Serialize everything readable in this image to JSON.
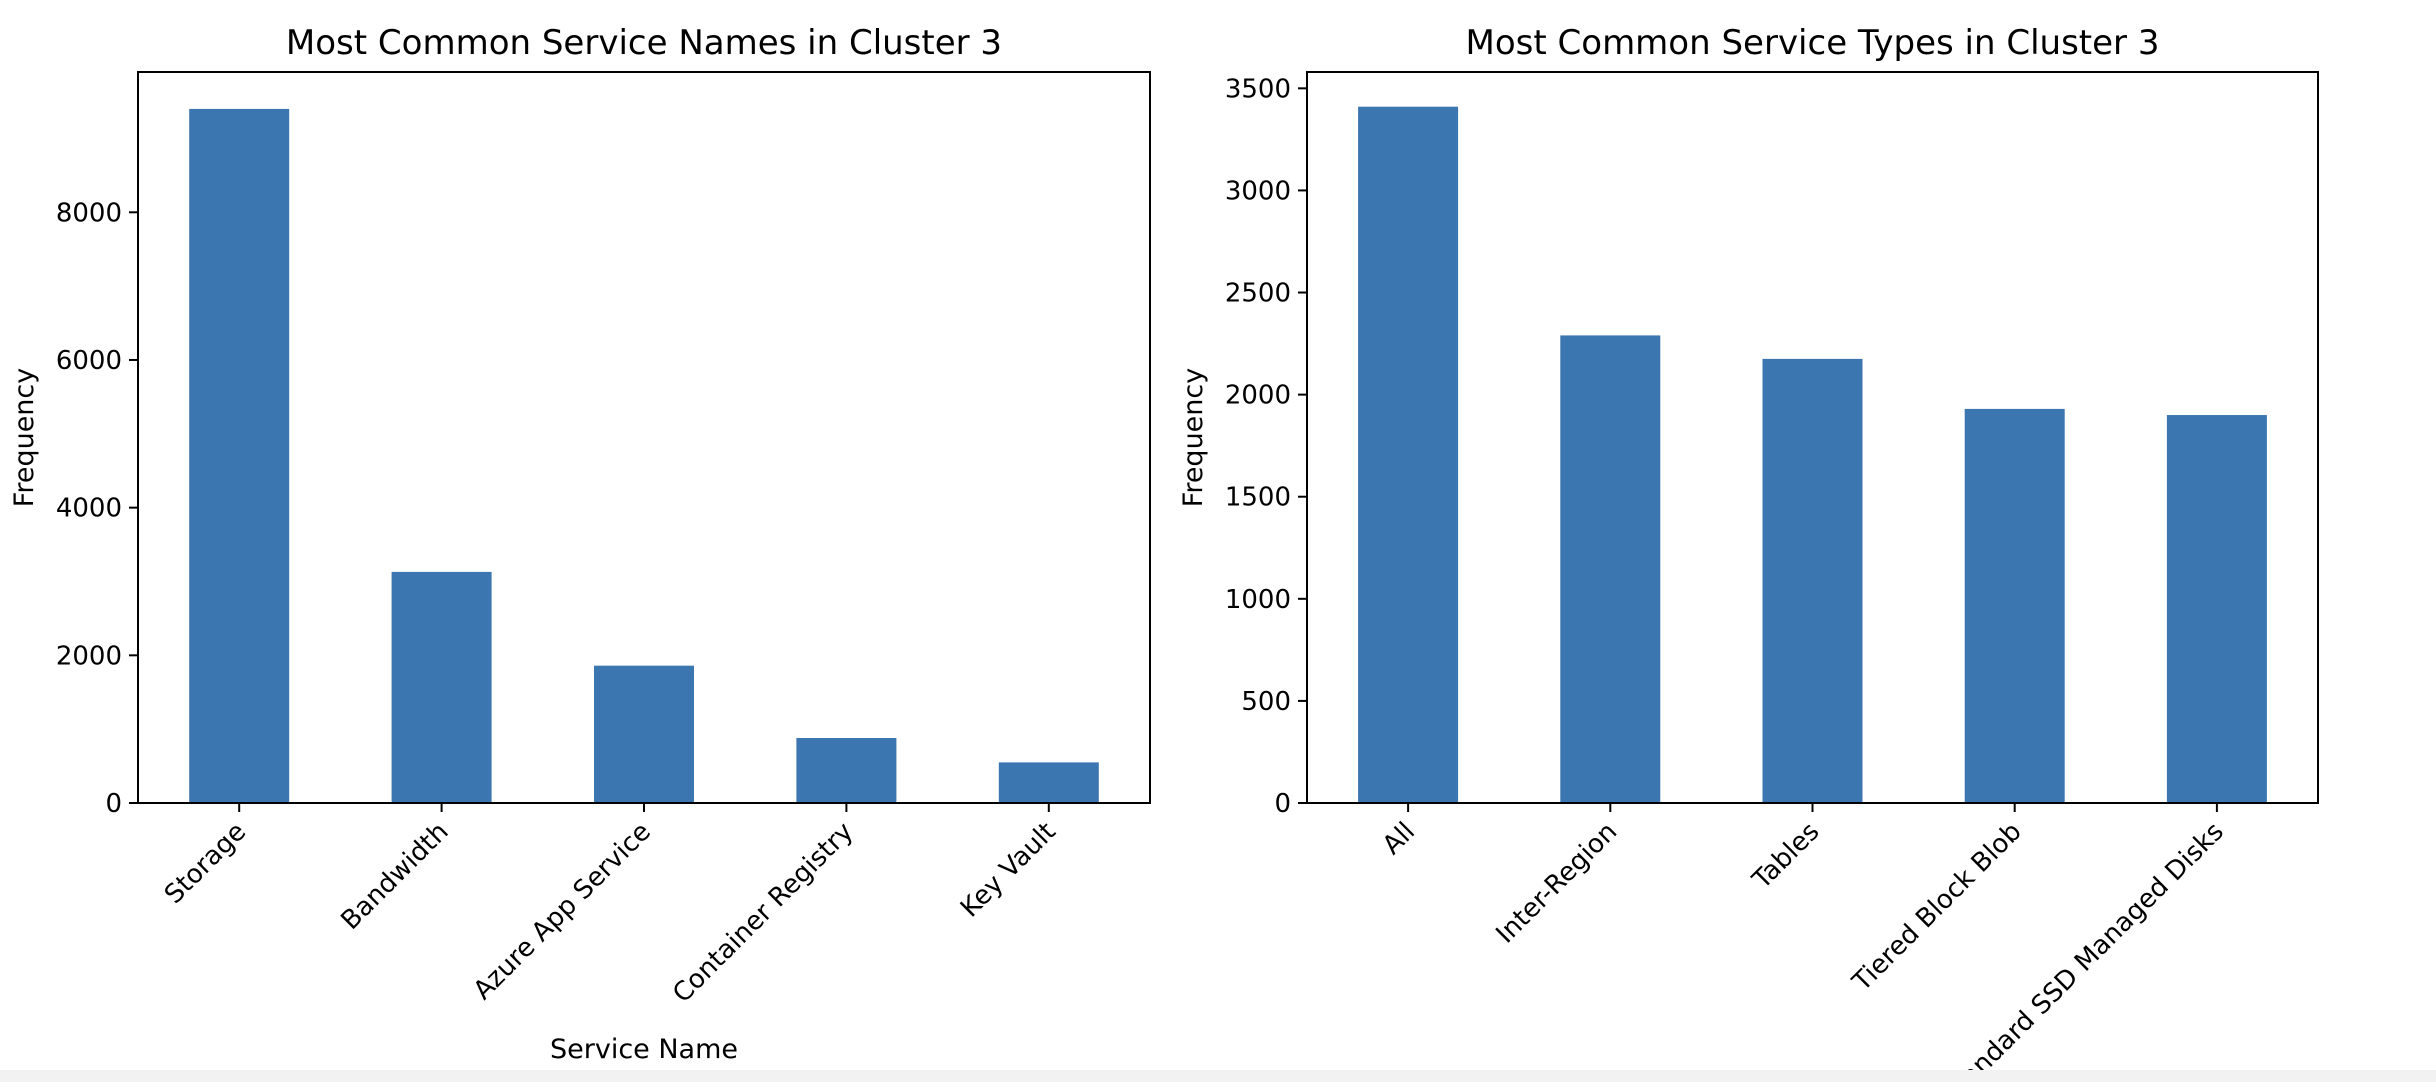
{
  "bar_color": "#3b76b0",
  "chart_data": [
    {
      "type": "bar",
      "title": "Most Common Service Names in Cluster 3",
      "xlabel": "Service Name",
      "ylabel": "Frequency",
      "categories": [
        "Storage",
        "Bandwidth",
        "Azure App Service",
        "Container Registry",
        "Key Vault"
      ],
      "values": [
        9400,
        3130,
        1860,
        880,
        550
      ],
      "ylim": [
        0,
        9900
      ],
      "yticks": [
        0,
        2000,
        4000,
        6000,
        8000
      ],
      "grid": false,
      "legend": "none"
    },
    {
      "type": "bar",
      "title": "Most Common Service Types in Cluster 3",
      "xlabel": "",
      "ylabel": "Frequency",
      "categories": [
        "All",
        "Inter-Region",
        "Tables",
        "Tiered Block Blob",
        "Standard SSD Managed Disks"
      ],
      "values": [
        3410,
        2290,
        2175,
        1930,
        1900
      ],
      "ylim": [
        0,
        3580
      ],
      "yticks": [
        0,
        500,
        1000,
        1500,
        2000,
        2500,
        3000,
        3500
      ],
      "grid": false,
      "legend": "none"
    }
  ]
}
